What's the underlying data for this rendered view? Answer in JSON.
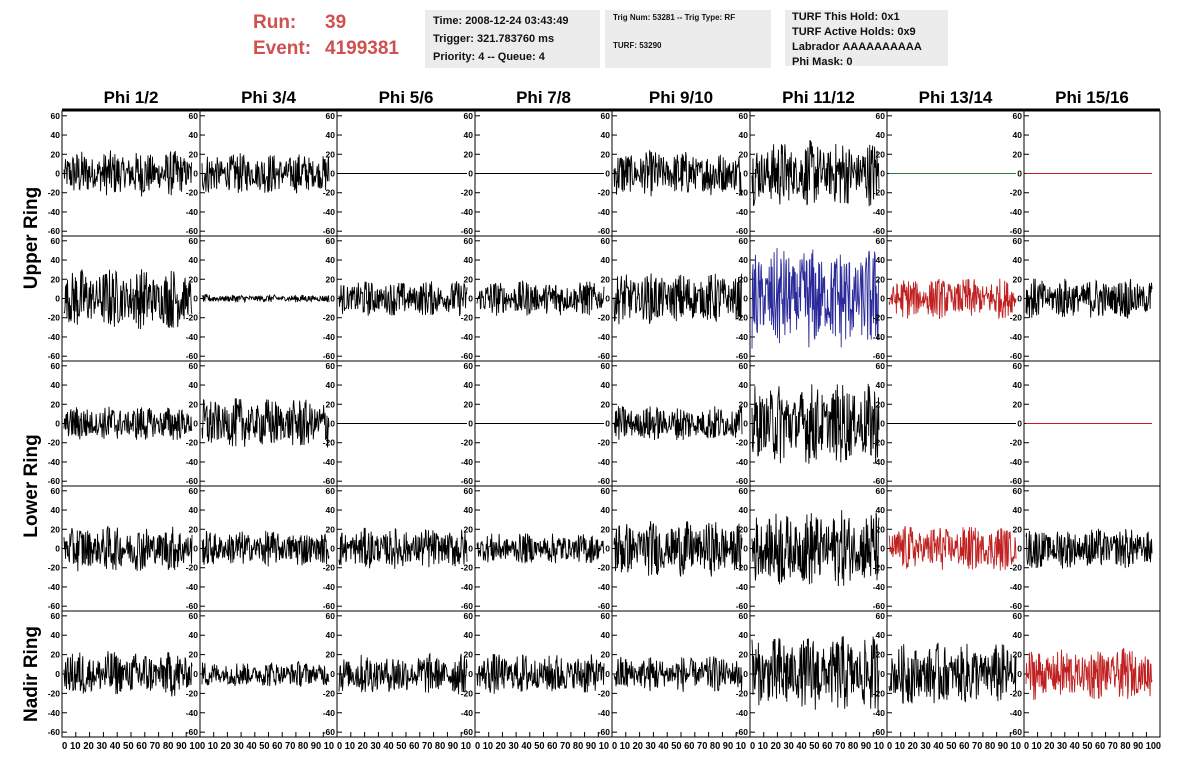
{
  "header": {
    "run_label": "Run:",
    "run_value": "39",
    "event_label": "Event:",
    "event_value": "4199381"
  },
  "time_box": {
    "time": "Time: 2008-12-24 03:43:49",
    "trigger": "Trigger: 321.783760 ms",
    "priority": "Priority: 4 -- Queue: 4"
  },
  "trig_box": {
    "trig": "Trig Num: 53281 -- Trig Type: RF",
    "turf": "TURF: 53290"
  },
  "turf_box": {
    "hold": "TURF This Hold: 0x1",
    "active": "TURF Active Holds: 0x9",
    "labrador": "Labrador AAAAAAAAAA",
    "mask": "Phi Mask: 0"
  },
  "rings": [
    "Upper Ring",
    "Lower Ring",
    "Nadir Ring"
  ],
  "chart_data": {
    "type": "line",
    "title": "",
    "columns": [
      "Phi 1/2",
      "Phi 3/4",
      "Phi 5/6",
      "Phi 7/8",
      "Phi 9/10",
      "Phi 11/12",
      "Phi 13/14",
      "Phi 15/16"
    ],
    "ylim": [
      -65,
      65
    ],
    "xlim": [
      0,
      100
    ],
    "y_ticks": [
      -60,
      -40,
      -20,
      0,
      20,
      40,
      60
    ],
    "x_tick_labels": [
      "0",
      "10",
      "20",
      "30",
      "40",
      "50",
      "60",
      "70",
      "80",
      "90",
      "100"
    ],
    "x_axis_label_first": "0 10 20 30 40 50 60 70 80 90 10",
    "x_axis_label_last": "0 10 20 30 40 50 60 70 80 90 100",
    "colors": {
      "normal": "#000000",
      "flat_upper": "#000000",
      "green": "#2e7d32",
      "blue": "#2a2a9a",
      "red": "#c02020"
    },
    "panel_rows": [
      [
        {
          "amp": 18,
          "color": "normal"
        },
        {
          "amp": 16,
          "color": "normal"
        },
        {
          "amp": 0,
          "color": "normal"
        },
        {
          "amp": 0,
          "color": "normal"
        },
        {
          "amp": 18,
          "color": "normal"
        },
        {
          "amp": 26,
          "color": "normal"
        },
        {
          "amp": 0,
          "color": "green"
        },
        {
          "amp": 0,
          "color": "red"
        }
      ],
      [
        {
          "amp": 24,
          "color": "normal"
        },
        {
          "amp": 3,
          "color": "normal"
        },
        {
          "amp": 14,
          "color": "normal"
        },
        {
          "amp": 14,
          "color": "normal"
        },
        {
          "amp": 20,
          "color": "normal"
        },
        {
          "amp": 40,
          "color": "blue"
        },
        {
          "amp": 16,
          "color": "red"
        },
        {
          "amp": 16,
          "color": "normal"
        }
      ],
      [
        {
          "amp": 14,
          "color": "normal"
        },
        {
          "amp": 20,
          "color": "normal"
        },
        {
          "amp": 0,
          "color": "normal"
        },
        {
          "amp": 0,
          "color": "normal"
        },
        {
          "amp": 14,
          "color": "normal"
        },
        {
          "amp": 32,
          "color": "normal"
        },
        {
          "amp": 0,
          "color": "normal"
        },
        {
          "amp": 0,
          "color": "red"
        }
      ],
      [
        {
          "amp": 18,
          "color": "normal"
        },
        {
          "amp": 14,
          "color": "normal"
        },
        {
          "amp": 16,
          "color": "normal"
        },
        {
          "amp": 12,
          "color": "normal"
        },
        {
          "amp": 22,
          "color": "normal"
        },
        {
          "amp": 30,
          "color": "normal"
        },
        {
          "amp": 18,
          "color": "red"
        },
        {
          "amp": 16,
          "color": "normal"
        }
      ],
      [
        {
          "amp": 18,
          "color": "normal"
        },
        {
          "amp": 10,
          "color": "normal"
        },
        {
          "amp": 16,
          "color": "normal"
        },
        {
          "amp": 16,
          "color": "normal"
        },
        {
          "amp": 14,
          "color": "normal"
        },
        {
          "amp": 30,
          "color": "normal"
        },
        {
          "amp": 24,
          "color": "normal"
        },
        {
          "amp": 20,
          "color": "red"
        }
      ]
    ]
  }
}
